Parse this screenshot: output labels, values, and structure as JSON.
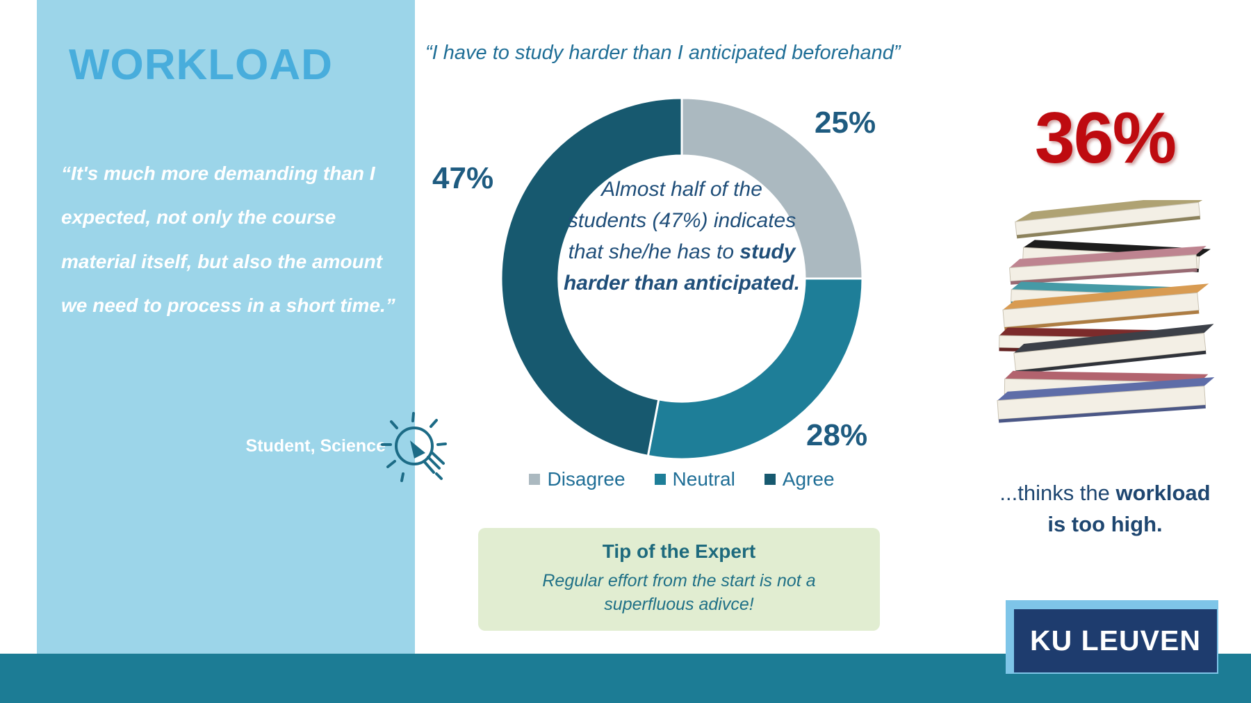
{
  "sidebar": {
    "title": "WORKLOAD",
    "quote": "“It's much more demanding than I expected, not only the course material itself, but also the amount we need to process in a short time.”",
    "attribution": "Student, Science"
  },
  "chart_data": {
    "type": "pie",
    "subtype": "donut",
    "title": "“I have to study harder than I anticipated beforehand”",
    "categories": [
      "Disagree",
      "Neutral",
      "Agree"
    ],
    "values": [
      25,
      28,
      47
    ],
    "segments": [
      {
        "label": "Disagree",
        "value": 25,
        "display": "25%",
        "color": "#ABB9C0"
      },
      {
        "label": "Neutral",
        "value": 28,
        "display": "28%",
        "color": "#1E7E98"
      },
      {
        "label": "Agree",
        "value": 47,
        "display": "47%",
        "color": "#17596F"
      }
    ],
    "start_angle_deg": 0,
    "direction": "clockwise",
    "legend_position": "bottom",
    "center_text": {
      "normal": "Almost half of the students (47%) indicates that she/he has to ",
      "bold": "study harder than anticipated."
    }
  },
  "tip": {
    "title": "Tip of the Expert",
    "body": "Regular effort from the start is not a superfluous adivce!"
  },
  "stat": {
    "value": "36%",
    "caption_lead": "...thinks the ",
    "caption_emphasis": "workload",
    "caption_line2": "is too high.",
    "color": "#BE0B10"
  },
  "books": {
    "colors": [
      "#AFA273",
      "#1C1C1C",
      "#BE8490",
      "#459AA6",
      "#D89B52",
      "#7C2B2B",
      "#3C4048",
      "#B2636E",
      "#5E6DA8"
    ]
  },
  "logo": {
    "text": "KU LEUVEN"
  },
  "theme": {
    "sidebar_bg": "#9CD5E9",
    "title_blue": "#48ADDC",
    "teal_bar": "#1C7C95",
    "navy": "#1F4E79",
    "logo_navy": "#1E3C6E",
    "logo_light": "#7EC5E8",
    "tip_bg": "#E1EDD1"
  }
}
